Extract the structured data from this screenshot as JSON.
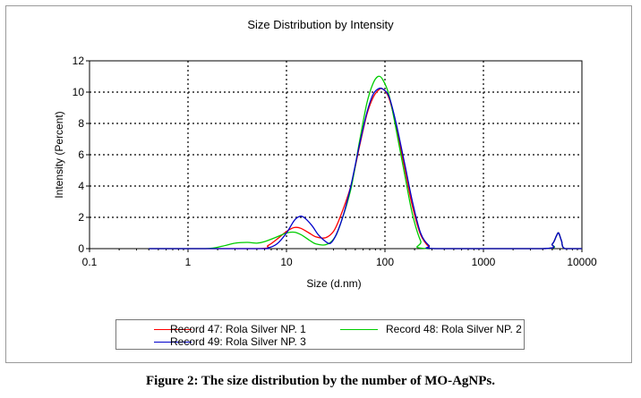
{
  "chart_data": {
    "type": "line",
    "title": "Size Distribution by Intensity",
    "xlabel": "Size (d.nm)",
    "ylabel": "Intensity (Percent)",
    "x_scale": "log",
    "xlim": [
      0.1,
      10000
    ],
    "ylim": [
      0,
      12
    ],
    "x_ticks": [
      "0.1",
      "1",
      "10",
      "100",
      "1000",
      "10000"
    ],
    "y_ticks": [
      "0",
      "2",
      "4",
      "6",
      "8",
      "10",
      "12"
    ],
    "grid": "dotted",
    "legend": "bottom",
    "series": [
      {
        "name": "Record 47: Rola Silver NP. 1",
        "color": "#ff0000",
        "points": [
          [
            0.4,
            0
          ],
          [
            5,
            0
          ],
          [
            6.5,
            0.2
          ],
          [
            8,
            0.6
          ],
          [
            10,
            1.1
          ],
          [
            12,
            1.35
          ],
          [
            14,
            1.3
          ],
          [
            17,
            1.0
          ],
          [
            20,
            0.75
          ],
          [
            25,
            0.7
          ],
          [
            30,
            1.1
          ],
          [
            35,
            2.0
          ],
          [
            45,
            4.0
          ],
          [
            55,
            6.5
          ],
          [
            65,
            8.5
          ],
          [
            75,
            9.6
          ],
          [
            85,
            10.1
          ],
          [
            95,
            10.2
          ],
          [
            110,
            9.6
          ],
          [
            130,
            7.8
          ],
          [
            160,
            5.0
          ],
          [
            190,
            2.7
          ],
          [
            230,
            0.9
          ],
          [
            280,
            0.1
          ],
          [
            320,
            0
          ],
          [
            4000,
            0
          ],
          [
            5000,
            0.3
          ],
          [
            5500,
            0.8
          ],
          [
            5800,
            1.0
          ],
          [
            6200,
            0.5
          ],
          [
            6700,
            0
          ],
          [
            10000,
            0
          ]
        ]
      },
      {
        "name": "Record 48: Rola Silver NP. 2",
        "color": "#00cc00",
        "points": [
          [
            0.4,
            0
          ],
          [
            1.5,
            0
          ],
          [
            2.2,
            0.15
          ],
          [
            3,
            0.35
          ],
          [
            4,
            0.4
          ],
          [
            5,
            0.35
          ],
          [
            6,
            0.45
          ],
          [
            8,
            0.75
          ],
          [
            10,
            1.0
          ],
          [
            12,
            1.05
          ],
          [
            14,
            0.9
          ],
          [
            17,
            0.55
          ],
          [
            20,
            0.3
          ],
          [
            25,
            0.25
          ],
          [
            30,
            0.6
          ],
          [
            35,
            1.5
          ],
          [
            45,
            3.8
          ],
          [
            55,
            6.8
          ],
          [
            65,
            9.2
          ],
          [
            75,
            10.5
          ],
          [
            85,
            11.0
          ],
          [
            95,
            10.8
          ],
          [
            110,
            9.8
          ],
          [
            130,
            7.6
          ],
          [
            160,
            4.6
          ],
          [
            190,
            2.2
          ],
          [
            230,
            0.5
          ],
          [
            270,
            0
          ],
          [
            4000,
            0
          ],
          [
            5000,
            0.3
          ],
          [
            5500,
            0.8
          ],
          [
            5800,
            1.0
          ],
          [
            6200,
            0.5
          ],
          [
            6700,
            0
          ],
          [
            10000,
            0
          ]
        ]
      },
      {
        "name": "Record 49: Rola Silver NP. 3",
        "color": "#0000cc",
        "points": [
          [
            0.4,
            0
          ],
          [
            5,
            0
          ],
          [
            6.5,
            0.05
          ],
          [
            8,
            0.3
          ],
          [
            10,
            1.0
          ],
          [
            12,
            1.8
          ],
          [
            13.5,
            2.05
          ],
          [
            15,
            2.0
          ],
          [
            18,
            1.5
          ],
          [
            21,
            0.9
          ],
          [
            25,
            0.45
          ],
          [
            28,
            0.35
          ],
          [
            32,
            0.9
          ],
          [
            38,
            2.2
          ],
          [
            45,
            4.0
          ],
          [
            55,
            6.6
          ],
          [
            65,
            8.6
          ],
          [
            75,
            9.8
          ],
          [
            85,
            10.2
          ],
          [
            95,
            10.2
          ],
          [
            110,
            9.7
          ],
          [
            130,
            8.0
          ],
          [
            160,
            5.3
          ],
          [
            190,
            3.0
          ],
          [
            230,
            1.0
          ],
          [
            280,
            0.2
          ],
          [
            330,
            0
          ],
          [
            4000,
            0
          ],
          [
            5000,
            0.3
          ],
          [
            5500,
            0.8
          ],
          [
            5800,
            1.0
          ],
          [
            6200,
            0.5
          ],
          [
            6700,
            0
          ],
          [
            10000,
            0
          ]
        ]
      }
    ]
  },
  "caption": "Figure 2: The size distribution by the number of MO-AgNPs."
}
